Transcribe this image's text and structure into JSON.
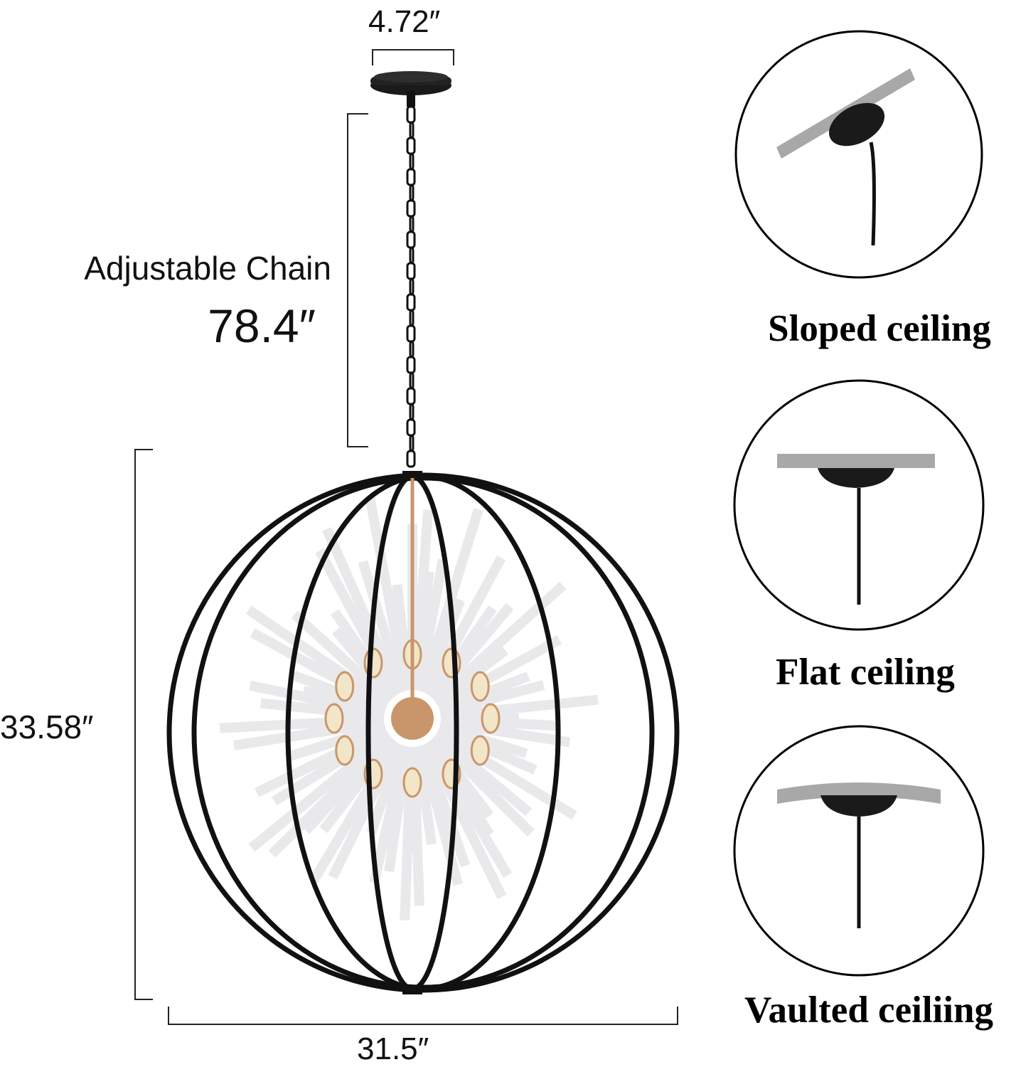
{
  "dimensions": {
    "canopy_width": "4.72″",
    "chain_label": "Adjustable Chain",
    "chain_length": "78.4″",
    "height": "33.58″",
    "width": "31.5″"
  },
  "ceiling_types": [
    {
      "label": "Sloped ceiling"
    },
    {
      "label": "Flat ceiling"
    },
    {
      "label": "Vaulted ceiliing"
    }
  ],
  "colors": {
    "frame": "#111111",
    "ceiling_plate": "#a8a8a8",
    "rods": "#e9e9ec",
    "sockets": "#c9966b"
  }
}
